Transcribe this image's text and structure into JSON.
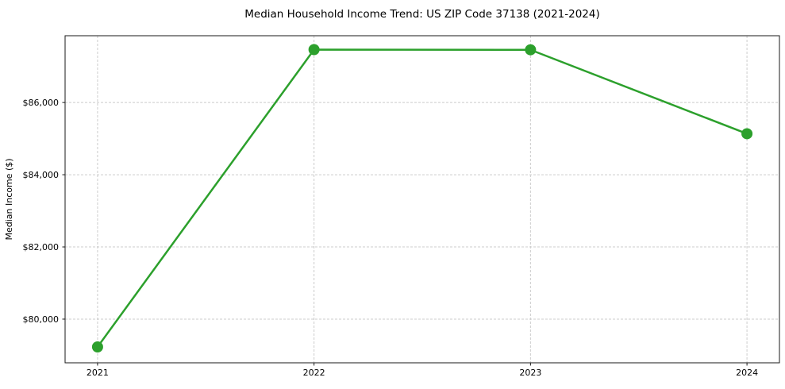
{
  "figure": {
    "title": "Median Household Income Trend: US ZIP Code 37138 (2021-2024)",
    "ylabel": "Median Income ($)"
  },
  "chart_data": {
    "type": "line",
    "title": "Median Household Income Trend: US ZIP Code 37138 (2021-2024)",
    "xlabel": "",
    "ylabel": "Median Income ($)",
    "x": [
      2021,
      2022,
      2023,
      2024
    ],
    "x_tick_labels": [
      "2021",
      "2022",
      "2023",
      "2024"
    ],
    "series": [
      {
        "name": "Median household income",
        "values": [
          79230,
          87465,
          87460,
          85135
        ],
        "color": "#2ca02c",
        "marker": "circle"
      }
    ],
    "y_ticks": [
      80000,
      82000,
      84000,
      86000
    ],
    "y_tick_labels": [
      "$80,000",
      "$82,000",
      "$84,000",
      "$86,000"
    ],
    "xlim": [
      2020.85,
      2024.15
    ],
    "ylim": [
      78790,
      87850
    ],
    "grid": true,
    "grid_style": "dashed",
    "legend": false,
    "colors": {
      "line": "#2ca02c",
      "grid": "#cccccc",
      "frame": "#1a1a1a",
      "text": "#000000",
      "background": "#ffffff"
    }
  }
}
